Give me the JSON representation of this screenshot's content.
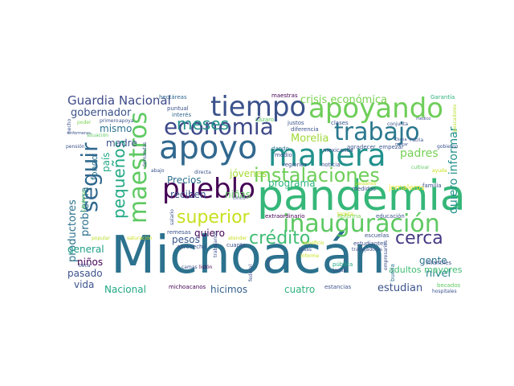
{
  "words": [
    {
      "text": "Michoacán",
      "color": "#2c728e"
    },
    {
      "text": "pandemia",
      "color": "#35b779"
    },
    {
      "text": "apoyo",
      "color": "#31688e"
    },
    {
      "text": "apoyando",
      "color": "#6ece58"
    },
    {
      "text": "economía",
      "color": "#3e4a89"
    },
    {
      "text": "manera",
      "color": "#21918c"
    },
    {
      "text": "pueblo",
      "color": "#440154"
    },
    {
      "text": "tiempo",
      "color": "#3b528b"
    },
    {
      "text": "trabajo",
      "color": "#2a788e"
    },
    {
      "text": "inauguración",
      "color": "#5ec962"
    },
    {
      "text": "instalaciones",
      "color": "#6ece58"
    },
    {
      "text": "maestros",
      "color": "#5ec962"
    },
    {
      "text": "seguir",
      "color": "#31688e"
    },
    {
      "text": "superior",
      "color": "#c8e020"
    },
    {
      "text": "crédito",
      "color": "#3fbc73"
    },
    {
      "text": "cerca",
      "color": "#443983"
    },
    {
      "text": "meses",
      "color": "#21918c"
    },
    {
      "text": "pequeños",
      "color": "#22a884"
    },
    {
      "text": "Guardia Nacional",
      "color": "#3e4a89"
    },
    {
      "text": "crisis económica",
      "color": "#7ad151"
    },
    {
      "text": "quiero informar",
      "color": "#21918c"
    },
    {
      "text": "padres",
      "color": "#75d054"
    },
    {
      "text": "Morelia",
      "color": "#a0da39"
    },
    {
      "text": "gobernador",
      "color": "#3b528b"
    },
    {
      "text": "mismo",
      "color": "#2c728e"
    },
    {
      "text": "madre",
      "color": "#3b528b"
    },
    {
      "text": "Precios",
      "color": "#2d708e"
    },
    {
      "text": "jóvenes",
      "color": "#a5db36"
    },
    {
      "text": "programa",
      "color": "#2db27d"
    },
    {
      "text": "nivel",
      "color": "#25848e"
    },
    {
      "text": "productores",
      "color": "#2c728e"
    },
    {
      "text": "problema",
      "color": "#2c728e"
    },
    {
      "text": "país",
      "color": "#22a884"
    },
    {
      "text": "fondo",
      "color": "#2c728e"
    },
    {
      "text": "reciben",
      "color": "#3b528b"
    },
    {
      "text": "niñas",
      "color": "#5ec962"
    },
    {
      "text": "quiero",
      "color": "#440154"
    },
    {
      "text": "pesos",
      "color": "#39568c"
    },
    {
      "text": "general",
      "color": "#1fa088"
    },
    {
      "text": "niños",
      "color": "#440154"
    },
    {
      "text": "pasado",
      "color": "#3b528b"
    },
    {
      "text": "vida",
      "color": "#3b528b"
    },
    {
      "text": "Nacional",
      "color": "#22a884"
    },
    {
      "text": "hicimos",
      "color": "#35608d"
    },
    {
      "text": "cuatro",
      "color": "#2db27d"
    },
    {
      "text": "estudian",
      "color": "#3b528b"
    },
    {
      "text": "gente",
      "color": "#2c728e"
    },
    {
      "text": "adultos mayores",
      "color": "#3fbc73"
    },
    {
      "text": "jornaleros",
      "color": "#fde725"
    },
    {
      "text": "mexicanos",
      "color": "#3b528b"
    },
    {
      "text": "agradecer",
      "color": "#3b528b"
    },
    {
      "text": "empezar",
      "color": "#3b528b"
    },
    {
      "text": "Garantía",
      "color": "#2db27d"
    },
    {
      "text": "hectáreas",
      "color": "#31688e"
    },
    {
      "text": "maestras",
      "color": "#440154"
    },
    {
      "text": "puntual",
      "color": "#3b528b"
    },
    {
      "text": "interés",
      "color": "#31688e"
    },
    {
      "text": "Lázaro",
      "color": "#5ec962"
    },
    {
      "text": "justos",
      "color": "#3b528b"
    },
    {
      "text": "clases",
      "color": "#3b528b"
    },
    {
      "text": "diferencia",
      "color": "#3b528b"
    },
    {
      "text": "dando",
      "color": "#2c728e"
    },
    {
      "text": "medio",
      "color": "#3b528b"
    },
    {
      "text": "regiones",
      "color": "#3b528b"
    },
    {
      "text": "noticia",
      "color": "#3b528b"
    },
    {
      "text": "educación",
      "color": "#3b528b"
    },
    {
      "text": "familia",
      "color": "#3b528b"
    },
    {
      "text": "medidas",
      "color": "#3b528b"
    },
    {
      "text": "extraordinario",
      "color": "#440154"
    },
    {
      "text": "Reforma",
      "color": "#7ad151"
    },
    {
      "text": "estudiantes",
      "color": "#3b528b"
    },
    {
      "text": "trabajadores",
      "color": "#3b528b"
    },
    {
      "text": "escuelas",
      "color": "#3b528b"
    },
    {
      "text": "pública",
      "color": "#22a884"
    },
    {
      "text": "toque",
      "color": "#3b528b"
    },
    {
      "text": "buena",
      "color": "#2c728e"
    },
    {
      "text": "infantiles",
      "color": "#3b528b"
    },
    {
      "text": "becados",
      "color": "#5ec962"
    },
    {
      "text": "hospitales",
      "color": "#3b528b"
    },
    {
      "text": "estancias",
      "color": "#3b528b"
    },
    {
      "text": "michoacanos",
      "color": "#440154"
    },
    {
      "text": "camas",
      "color": "#3b528b"
    },
    {
      "text": "listón",
      "color": "#440154"
    },
    {
      "text": "cuanto",
      "color": "#3b528b"
    },
    {
      "text": "aprovecho",
      "color": "#3b528b"
    },
    {
      "text": "remesas",
      "color": "#3b528b"
    },
    {
      "text": "saturación",
      "color": "#c8e020"
    },
    {
      "text": "popular",
      "color": "#b5de2b"
    },
    {
      "text": "beca",
      "color": "#3b528b"
    },
    {
      "text": "atender",
      "color": "#c8e020"
    },
    {
      "text": "tasas",
      "color": "#3b528b"
    },
    {
      "text": "informe",
      "color": "#c8e020"
    },
    {
      "text": "corte",
      "color": "#3b528b"
    },
    {
      "text": "federal",
      "color": "#3b528b"
    },
    {
      "text": "empresarios",
      "color": "#3b528b"
    },
    {
      "text": "salario",
      "color": "#3b528b"
    },
    {
      "text": "cinco",
      "color": "#3b528b"
    },
    {
      "text": "trabajando",
      "color": "#3b528b"
    },
    {
      "text": "directa",
      "color": "#3b528b"
    },
    {
      "text": "abajo",
      "color": "#3b528b"
    },
    {
      "text": "demandas",
      "color": "#3b528b"
    },
    {
      "text": "situación",
      "color": "#5ec962"
    },
    {
      "text": "primero",
      "color": "#3b528b"
    },
    {
      "text": "apoya",
      "color": "#3b528b"
    },
    {
      "text": "pensión",
      "color": "#3b528b"
    },
    {
      "text": "hecho",
      "color": "#3b528b"
    },
    {
      "text": "poder",
      "color": "#7ad151"
    },
    {
      "text": "enfermeras",
      "color": "#3b528b"
    },
    {
      "text": "Cárdenas",
      "color": "#5ec962"
    },
    {
      "text": "gobierno",
      "color": "#3b528b"
    },
    {
      "text": "conjunta",
      "color": "#3b528b"
    },
    {
      "text": "pescadores",
      "color": "#b5de2b"
    },
    {
      "text": "ayuda",
      "color": "#c8e020"
    },
    {
      "text": "cultivar",
      "color": "#5ec962"
    },
    {
      "text": "Diana",
      "color": "#3b528b"
    },
    {
      "text": "Patria",
      "color": "#3b528b"
    },
    {
      "text": "militar",
      "color": "#3b528b"
    },
    {
      "text": "médico",
      "color": "#3b528b"
    },
    {
      "text": "paisanos",
      "color": "#c8e020"
    },
    {
      "text": "tarjeta",
      "color": "#c8e020"
    },
    {
      "text": "beneficio",
      "color": "#c8e020"
    }
  ]
}
